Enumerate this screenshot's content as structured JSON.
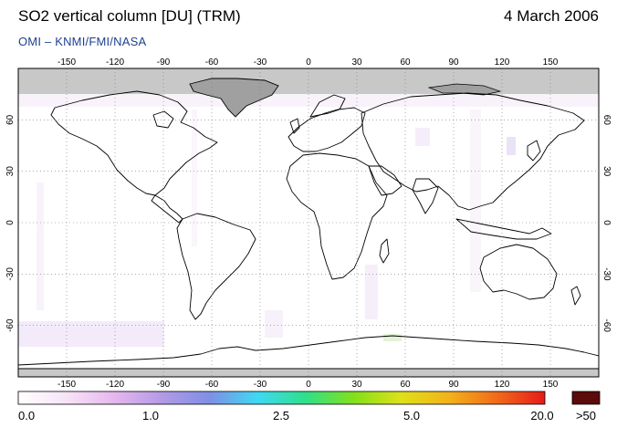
{
  "header": {
    "title": "SO2 vertical column [DU] (TRM)",
    "date": "4 March 2006",
    "credit": "OMI  –  KNMI/FMI/NASA"
  },
  "map": {
    "lon_ticks": [
      "-150",
      "-120",
      "-90",
      "-60",
      "-30",
      "0",
      "30",
      "60",
      "90",
      "120",
      "150"
    ],
    "lat_ticks_left": [
      "60",
      "30",
      "0",
      "-30",
      "-60"
    ],
    "lat_ticks_right": [
      "60",
      "30",
      "0",
      "-30",
      "-60"
    ],
    "lon_values": [
      -150,
      -120,
      -90,
      -60,
      -30,
      0,
      30,
      60,
      90,
      120,
      150
    ],
    "lat_values": [
      60,
      30,
      0,
      -30,
      -60
    ],
    "lon_range": [
      -180,
      180
    ],
    "lat_range": [
      -90,
      90
    ],
    "grid": true,
    "colors": {
      "no_data": "#c8c8c8",
      "background": "#ffffff",
      "coast": "#000000",
      "grid": "#777777"
    }
  },
  "colorbar": {
    "labels": [
      "0.0",
      "1.0",
      "2.5",
      "5.0",
      "20.0",
      ">50"
    ],
    "label_values": [
      0,
      1.0,
      2.5,
      5.0,
      20.0
    ],
    "gradient_stops": [
      "#ffffff",
      "#f7e4f7",
      "#e6b7ee",
      "#b39ae6",
      "#7f8fe6",
      "#3fd9f2",
      "#2fe08a",
      "#82e01a",
      "#dfe01a",
      "#f2b21a",
      "#f26a1a",
      "#e61a1a"
    ],
    "overflow_color": "#5c0a0a"
  }
}
